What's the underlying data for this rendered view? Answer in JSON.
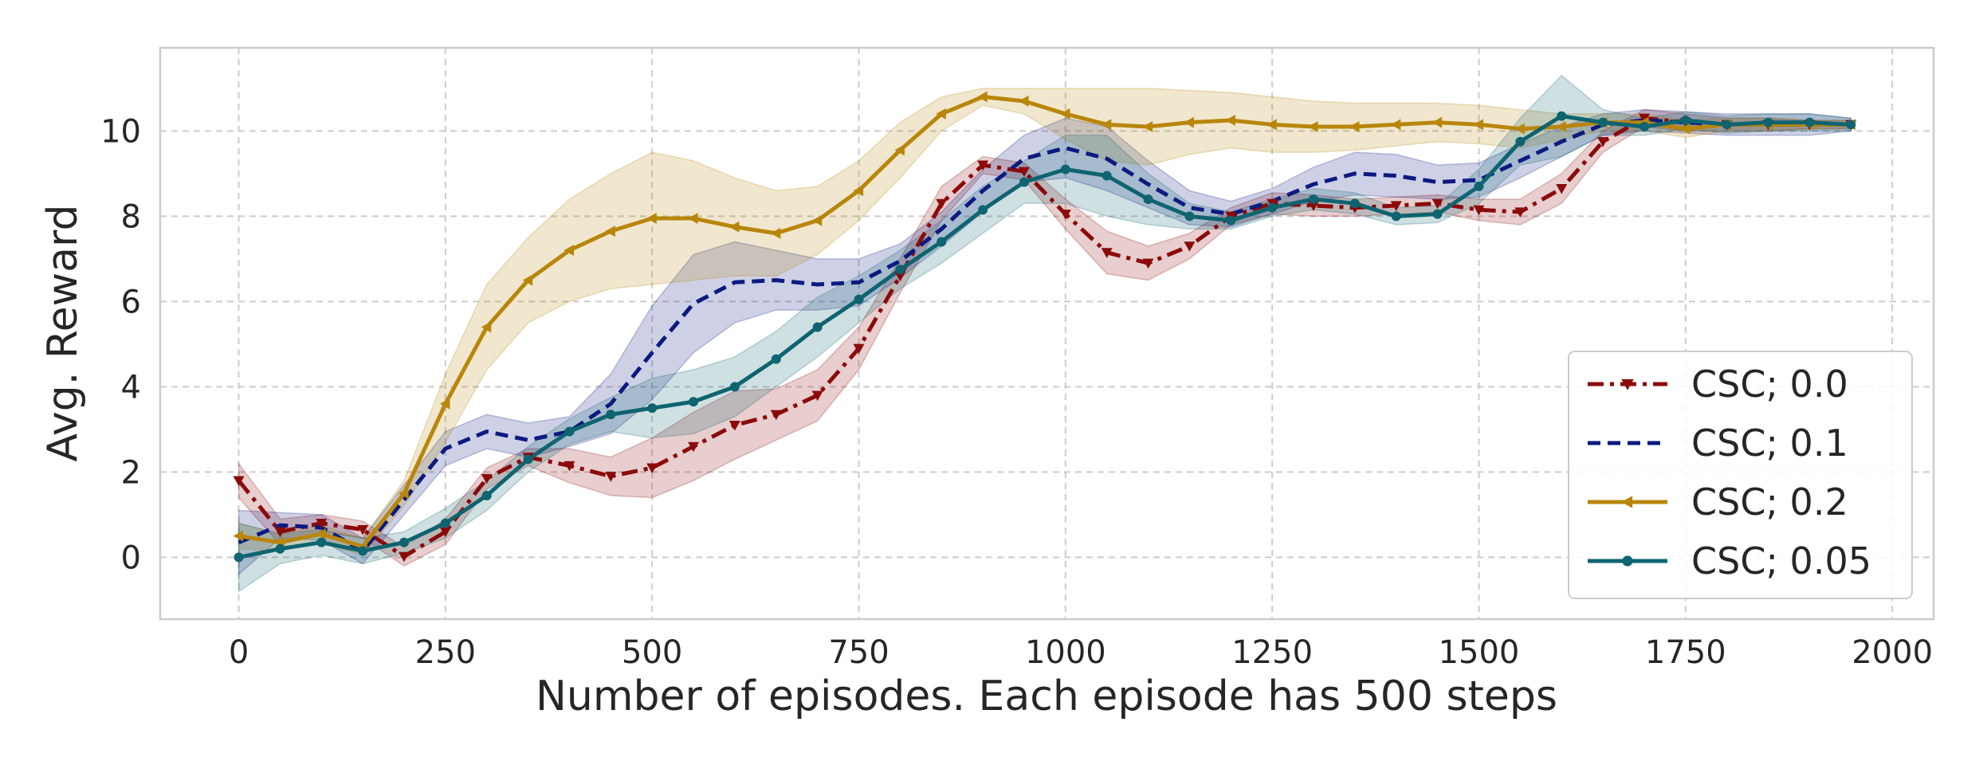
{
  "chart_data": {
    "type": "line",
    "title": "",
    "xlabel": "Number of episodes. Each episode has 500 steps",
    "ylabel": "Avg. Reward",
    "xlim": [
      -95,
      2050
    ],
    "ylim": [
      -1.45,
      11.95
    ],
    "xticks": [
      0,
      250,
      500,
      750,
      1000,
      1250,
      1500,
      1750,
      2000
    ],
    "yticks": [
      0,
      2,
      4,
      6,
      8,
      10
    ],
    "grid": true,
    "legend_position": "lower-right",
    "x": [
      0,
      50,
      100,
      150,
      200,
      250,
      300,
      350,
      400,
      450,
      500,
      550,
      600,
      650,
      700,
      750,
      800,
      850,
      900,
      950,
      1000,
      1050,
      1100,
      1150,
      1200,
      1250,
      1300,
      1350,
      1400,
      1450,
      1500,
      1550,
      1600,
      1650,
      1700,
      1750,
      1800,
      1850,
      1900,
      1950
    ],
    "series": [
      {
        "name": "CSC; 0.0",
        "color": "#8b0a0a",
        "linestyle": "dashdot",
        "marker": "triangle-down",
        "values": [
          1.8,
          0.6,
          0.8,
          0.65,
          0.02,
          0.6,
          1.85,
          2.35,
          2.15,
          1.9,
          2.1,
          2.6,
          3.1,
          3.35,
          3.8,
          4.9,
          6.6,
          8.3,
          9.2,
          9.05,
          8.05,
          7.15,
          6.9,
          7.3,
          8.0,
          8.3,
          8.25,
          8.2,
          8.25,
          8.3,
          8.15,
          8.1,
          8.65,
          9.75,
          10.3,
          10.2,
          10.15,
          10.15,
          10.15,
          10.15
        ],
        "band": [
          [
            1.4,
            2.2
          ],
          [
            0.3,
            0.9
          ],
          [
            0.6,
            1.0
          ],
          [
            0.45,
            0.85
          ],
          [
            -0.2,
            0.24
          ],
          [
            0.3,
            0.9
          ],
          [
            1.6,
            2.1
          ],
          [
            2.15,
            2.55
          ],
          [
            1.75,
            2.55
          ],
          [
            1.45,
            2.35
          ],
          [
            1.4,
            2.8
          ],
          [
            1.8,
            3.4
          ],
          [
            2.3,
            3.9
          ],
          [
            2.75,
            3.95
          ],
          [
            3.2,
            4.4
          ],
          [
            4.4,
            5.4
          ],
          [
            6.2,
            7.0
          ],
          [
            7.9,
            8.7
          ],
          [
            9.0,
            9.4
          ],
          [
            8.85,
            9.25
          ],
          [
            7.7,
            8.4
          ],
          [
            6.65,
            7.65
          ],
          [
            6.5,
            7.3
          ],
          [
            7.0,
            7.6
          ],
          [
            7.8,
            8.2
          ],
          [
            8.05,
            8.55
          ],
          [
            8.0,
            8.5
          ],
          [
            8.0,
            8.4
          ],
          [
            8.05,
            8.45
          ],
          [
            8.1,
            8.5
          ],
          [
            7.9,
            8.4
          ],
          [
            7.8,
            8.4
          ],
          [
            8.3,
            9.0
          ],
          [
            9.5,
            10.0
          ],
          [
            10.1,
            10.5
          ],
          [
            10.0,
            10.4
          ],
          [
            10.0,
            10.3
          ],
          [
            10.0,
            10.3
          ],
          [
            10.05,
            10.25
          ],
          [
            10.05,
            10.25
          ]
        ]
      },
      {
        "name": "CSC; 0.1",
        "color": "#0c1a80",
        "linestyle": "dashed",
        "marker": "none",
        "values": [
          0.35,
          0.75,
          0.7,
          0.15,
          1.35,
          2.55,
          2.95,
          2.75,
          2.95,
          3.6,
          4.8,
          5.95,
          6.45,
          6.5,
          6.4,
          6.45,
          6.95,
          7.7,
          8.6,
          9.35,
          9.6,
          9.35,
          8.75,
          8.2,
          8.05,
          8.35,
          8.75,
          9.0,
          8.95,
          8.8,
          8.85,
          9.3,
          9.75,
          10.15,
          10.25,
          10.2,
          10.15,
          10.15,
          10.15,
          10.15
        ],
        "band": [
          [
            -0.4,
            1.1
          ],
          [
            0.45,
            1.05
          ],
          [
            0.4,
            1.0
          ],
          [
            -0.15,
            0.45
          ],
          [
            1.0,
            1.7
          ],
          [
            2.15,
            2.95
          ],
          [
            2.55,
            3.35
          ],
          [
            2.35,
            3.15
          ],
          [
            2.6,
            3.3
          ],
          [
            2.9,
            4.3
          ],
          [
            3.7,
            5.9
          ],
          [
            4.8,
            7.1
          ],
          [
            5.5,
            7.4
          ],
          [
            5.8,
            7.2
          ],
          [
            5.8,
            7.0
          ],
          [
            5.9,
            7.0
          ],
          [
            6.55,
            7.35
          ],
          [
            7.3,
            8.1
          ],
          [
            8.1,
            9.1
          ],
          [
            8.8,
            9.9
          ],
          [
            8.9,
            10.3
          ],
          [
            8.6,
            10.1
          ],
          [
            8.2,
            9.3
          ],
          [
            7.8,
            8.6
          ],
          [
            7.75,
            8.35
          ],
          [
            8.05,
            8.65
          ],
          [
            8.35,
            9.15
          ],
          [
            8.5,
            9.5
          ],
          [
            8.45,
            9.45
          ],
          [
            8.4,
            9.2
          ],
          [
            8.45,
            9.25
          ],
          [
            8.9,
            9.7
          ],
          [
            9.4,
            10.1
          ],
          [
            9.9,
            10.4
          ],
          [
            10.0,
            10.5
          ],
          [
            9.95,
            10.45
          ],
          [
            9.9,
            10.4
          ],
          [
            9.9,
            10.4
          ],
          [
            9.9,
            10.4
          ],
          [
            10.0,
            10.3
          ]
        ]
      },
      {
        "name": "CSC; 0.2",
        "color": "#b8860b",
        "linestyle": "solid",
        "marker": "triangle-left",
        "values": [
          0.5,
          0.35,
          0.55,
          0.25,
          1.5,
          3.6,
          5.4,
          6.5,
          7.2,
          7.65,
          7.95,
          7.95,
          7.75,
          7.6,
          7.9,
          8.6,
          9.55,
          10.4,
          10.8,
          10.7,
          10.4,
          10.15,
          10.1,
          10.2,
          10.25,
          10.15,
          10.1,
          10.1,
          10.15,
          10.2,
          10.15,
          10.05,
          10.1,
          10.2,
          10.2,
          10.05,
          10.15,
          10.15,
          10.15,
          10.15
        ],
        "band": [
          [
            0.2,
            0.8
          ],
          [
            0.15,
            0.55
          ],
          [
            0.35,
            0.75
          ],
          [
            0.05,
            0.45
          ],
          [
            1.2,
            1.8
          ],
          [
            2.7,
            4.3
          ],
          [
            4.4,
            6.4
          ],
          [
            5.5,
            7.5
          ],
          [
            6.0,
            8.4
          ],
          [
            6.3,
            9.0
          ],
          [
            6.4,
            9.5
          ],
          [
            6.5,
            9.3
          ],
          [
            6.6,
            8.9
          ],
          [
            6.6,
            8.6
          ],
          [
            7.1,
            8.7
          ],
          [
            7.9,
            9.3
          ],
          [
            8.9,
            10.2
          ],
          [
            10.0,
            10.8
          ],
          [
            10.6,
            11.0
          ],
          [
            10.4,
            11.0
          ],
          [
            9.8,
            11.0
          ],
          [
            9.3,
            11.0
          ],
          [
            9.2,
            11.0
          ],
          [
            9.45,
            10.95
          ],
          [
            9.6,
            10.9
          ],
          [
            9.5,
            10.8
          ],
          [
            9.5,
            10.7
          ],
          [
            9.55,
            10.65
          ],
          [
            9.65,
            10.65
          ],
          [
            9.75,
            10.65
          ],
          [
            9.7,
            10.6
          ],
          [
            9.6,
            10.5
          ],
          [
            9.8,
            10.4
          ],
          [
            10.0,
            10.4
          ],
          [
            10.0,
            10.4
          ],
          [
            9.85,
            10.25
          ],
          [
            10.0,
            10.3
          ],
          [
            10.0,
            10.3
          ],
          [
            10.05,
            10.25
          ],
          [
            10.05,
            10.25
          ]
        ]
      },
      {
        "name": "CSC; 0.05",
        "color": "#0e6470",
        "linestyle": "solid",
        "marker": "circle",
        "values": [
          0.0,
          0.2,
          0.35,
          0.15,
          0.35,
          0.8,
          1.45,
          2.3,
          2.95,
          3.35,
          3.5,
          3.65,
          4.0,
          4.65,
          5.4,
          6.05,
          6.75,
          7.4,
          8.15,
          8.8,
          9.1,
          8.95,
          8.4,
          8.0,
          7.9,
          8.2,
          8.4,
          8.3,
          8.0,
          8.05,
          8.7,
          9.75,
          10.35,
          10.2,
          10.1,
          10.25,
          10.15,
          10.2,
          10.2,
          10.15
        ],
        "band": [
          [
            -0.8,
            0.8
          ],
          [
            -0.15,
            0.55
          ],
          [
            0.05,
            0.65
          ],
          [
            -0.15,
            0.45
          ],
          [
            0.1,
            0.6
          ],
          [
            0.45,
            1.15
          ],
          [
            1.1,
            1.8
          ],
          [
            2.0,
            2.6
          ],
          [
            2.65,
            3.25
          ],
          [
            2.95,
            3.75
          ],
          [
            2.8,
            4.2
          ],
          [
            2.9,
            4.4
          ],
          [
            3.3,
            4.7
          ],
          [
            4.0,
            5.3
          ],
          [
            4.7,
            6.1
          ],
          [
            5.5,
            6.6
          ],
          [
            6.3,
            7.2
          ],
          [
            6.9,
            7.9
          ],
          [
            7.6,
            8.7
          ],
          [
            8.3,
            9.3
          ],
          [
            8.3,
            9.9
          ],
          [
            8.0,
            9.9
          ],
          [
            7.8,
            9.0
          ],
          [
            7.7,
            8.3
          ],
          [
            7.7,
            8.1
          ],
          [
            8.0,
            8.4
          ],
          [
            8.15,
            8.65
          ],
          [
            8.05,
            8.55
          ],
          [
            7.8,
            8.2
          ],
          [
            7.85,
            8.25
          ],
          [
            8.3,
            9.1
          ],
          [
            9.2,
            10.3
          ],
          [
            9.4,
            11.3
          ],
          [
            9.9,
            10.5
          ],
          [
            9.9,
            10.3
          ],
          [
            10.05,
            10.45
          ],
          [
            9.95,
            10.35
          ],
          [
            10.0,
            10.4
          ],
          [
            10.0,
            10.4
          ],
          [
            10.0,
            10.3
          ]
        ]
      }
    ]
  }
}
